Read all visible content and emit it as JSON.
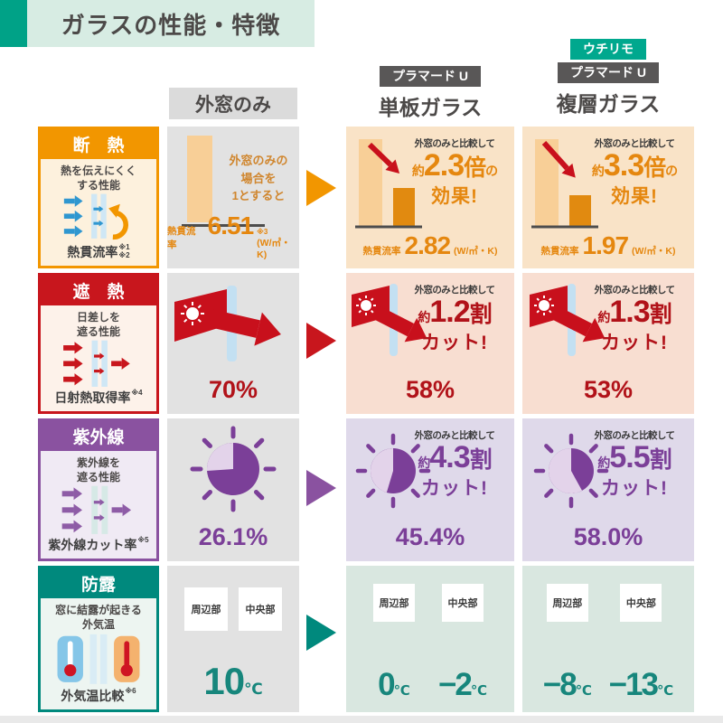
{
  "title": "ガラスの性能・特徴",
  "header": {
    "baseline_label": "外窓のみ",
    "single": {
      "badge": "プラマード U",
      "label": "単板ガラス"
    },
    "double": {
      "badge_top": "ウチリモ",
      "badge": "プラマード U",
      "label": "複層ガラス"
    }
  },
  "rows": [
    {
      "title": "断　熱",
      "description": "熱を伝えにくく\nする性能",
      "metric": "熱貫流率",
      "metric_refs": "※1\n※2",
      "baseline": {
        "note": "外窓のみの\n場合を\n1とすると",
        "value_label": "熱貫流率",
        "value": "6.51",
        "value_ref": "※3",
        "unit": "(W/㎡・K)"
      },
      "single": {
        "compare": "外窓のみと比較して",
        "approx": "約",
        "figure": "2.3",
        "counter": "倍",
        "tail": "の",
        "line2": "効果!",
        "value_label": "熱貫流率",
        "value": "2.82",
        "unit": "(W/㎡・K)"
      },
      "double": {
        "compare": "外窓のみと比較して",
        "approx": "約",
        "figure": "3.3",
        "counter": "倍",
        "tail": "の",
        "line2": "効果!",
        "value_label": "熱貫流率",
        "value": "1.97",
        "unit": "(W/㎡・K)"
      }
    },
    {
      "title": "遮　熱",
      "description": "日差しを\n遮る性能",
      "metric": "日射熱取得率",
      "metric_refs": "※4",
      "baseline": {
        "value": "70%"
      },
      "single": {
        "compare": "外窓のみと比較して",
        "approx": "約",
        "figure": "1.2",
        "counter": "割",
        "tail": "",
        "line2": "カット!",
        "value": "58%"
      },
      "double": {
        "compare": "外窓のみと比較して",
        "approx": "約",
        "figure": "1.3",
        "counter": "割",
        "tail": "",
        "line2": "カット!",
        "value": "53%"
      }
    },
    {
      "title": "紫外線",
      "description": "紫外線を\n遮る性能",
      "metric": "紫外線カット率",
      "metric_refs": "※5",
      "baseline": {
        "value": "26.1%"
      },
      "single": {
        "compare": "外窓のみと比較して",
        "approx": "約",
        "figure": "4.3",
        "counter": "割",
        "tail": "",
        "line2": "カット!",
        "value": "45.4%"
      },
      "double": {
        "compare": "外窓のみと比較して",
        "approx": "約",
        "figure": "5.5",
        "counter": "割",
        "tail": "",
        "line2": "カット!",
        "value": "58.0%"
      }
    },
    {
      "title": "防露",
      "description": "窓に結露が起きる\n外気温",
      "metric": "外気温比較",
      "metric_refs": "※6",
      "zone_labels": [
        "周辺部",
        "中央部"
      ],
      "baseline": {
        "value": "10",
        "unit": "℃"
      },
      "single": {
        "items": [
          {
            "label": "周辺部",
            "value": "0",
            "unit": "℃"
          },
          {
            "label": "中央部",
            "value": "−2",
            "unit": "℃"
          }
        ]
      },
      "double": {
        "items": [
          {
            "label": "周辺部",
            "value": "−8",
            "unit": "℃"
          },
          {
            "label": "中央部",
            "value": "−13",
            "unit": "℃"
          }
        ]
      }
    }
  ],
  "colors": {
    "brand_teal": "#00a287",
    "title_bg": "#d7ece3",
    "badge_dark": "#595757",
    "badge_teal": "#00a88e",
    "insulation_orange": "#f29600",
    "shading_red": "#c8161d",
    "uv_purple": "#8a52a0",
    "dew_teal": "#00897d",
    "baseline_cell_gray": "#e2e2e2"
  },
  "chart_data": {
    "type": "table",
    "columns": [
      "外窓のみ",
      "プラマード U 単板ガラス",
      "ウチリモ プラマード U 複層ガラス"
    ],
    "rows": [
      {
        "metric": "熱貫流率 (W/㎡・K)",
        "values": [
          6.51,
          2.82,
          1.97
        ],
        "effect": [
          "外窓のみの場合を1とすると",
          "約2.3倍の効果!",
          "約3.3倍の効果!"
        ]
      },
      {
        "metric": "日射熱取得率",
        "values": [
          "70%",
          "58%",
          "53%"
        ],
        "effect": [
          "",
          "約1.2割カット!",
          "約1.3割カット!"
        ]
      },
      {
        "metric": "紫外線カット率",
        "values": [
          "26.1%",
          "45.4%",
          "58.0%"
        ],
        "effect": [
          "",
          "約4.3割カット!",
          "約5.5割カット!"
        ]
      },
      {
        "metric": "外気温比較",
        "values": [
          "周辺部・中央部 10℃",
          "周辺部 0℃ / 中央部 −2℃",
          "周辺部 −8℃ / 中央部 −13℃"
        ]
      }
    ]
  }
}
